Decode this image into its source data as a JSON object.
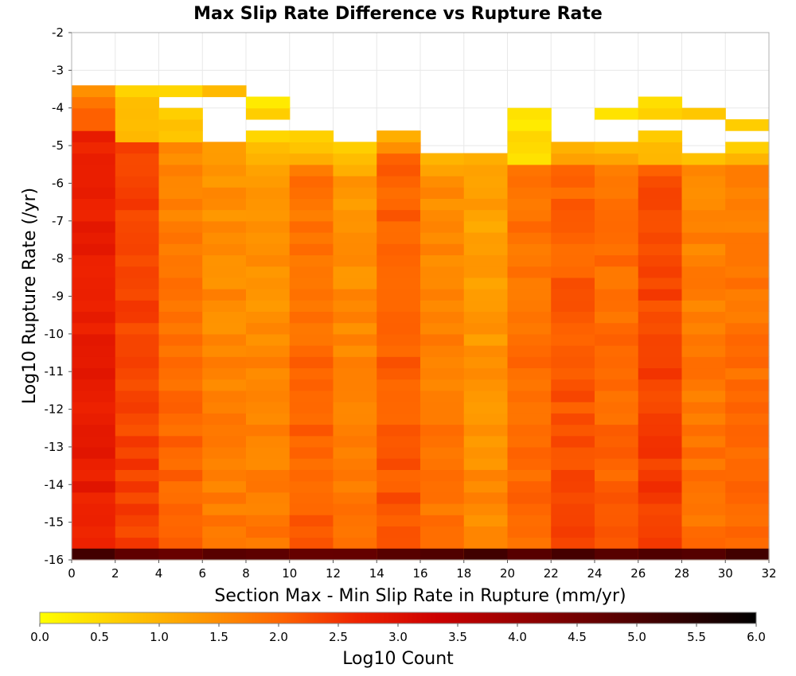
{
  "chart_data": {
    "type": "heatmap",
    "title": "Max Slip Rate Difference vs Rupture Rate",
    "xlabel": "Section Max - Min Slip Rate in Rupture (mm/yr)",
    "ylabel": "Log10 Rupture Rate (/yr)",
    "xlim": [
      0,
      32
    ],
    "ylim": [
      -16,
      -2
    ],
    "x_ticks": [
      "0",
      "2",
      "4",
      "6",
      "8",
      "10",
      "12",
      "14",
      "16",
      "18",
      "20",
      "22",
      "24",
      "26",
      "28",
      "30",
      "32"
    ],
    "y_ticks": [
      "-2",
      "-3",
      "-4",
      "-5",
      "-6",
      "-7",
      "-8",
      "-9",
      "-10",
      "-11",
      "-12",
      "-13",
      "-14",
      "-15",
      "-16"
    ],
    "x_bin_width": 2,
    "y_bin_height": 0.3,
    "y_bin_start": -16,
    "colorbar": {
      "label": "Log10 Count",
      "min": 0.0,
      "max": 6.0,
      "ticks": [
        "0.0",
        "0.5",
        "1.0",
        "1.5",
        "2.0",
        "2.5",
        "3.0",
        "3.5",
        "4.0",
        "4.5",
        "5.0",
        "5.5",
        "6.0"
      ],
      "stops": [
        "#ffff00",
        "#ffcc00",
        "#ff9900",
        "#ff6600",
        "#ee2200",
        "#cc0000",
        "#990000",
        "#660000",
        "#330000",
        "#000000"
      ]
    },
    "columns": [
      {
        "x": 1,
        "y_top": -3.3,
        "profile": [
          [
            -4.7,
            1.4,
            2.3
          ],
          [
            -16,
            2.7,
            2.8
          ]
        ]
      },
      {
        "x": 3,
        "y_top": -3.3,
        "profile": [
          [
            -4.8,
            0.6,
            1.1
          ],
          [
            -16,
            2.3,
            2.4
          ]
        ]
      },
      {
        "x": 5,
        "y_top": -3.3,
        "gap": [
          -4.1,
          -3.8
        ],
        "profile": [
          [
            -4.8,
            0.5,
            0.9
          ],
          [
            -16,
            1.6,
            2.1
          ]
        ]
      },
      {
        "x": 7,
        "y_top": -3.3,
        "gap": [
          -5.0,
          -3.6
        ],
        "profile": [
          [
            -5.4,
            0.8,
            1.2
          ],
          [
            -16,
            1.4,
            1.8
          ]
        ]
      },
      {
        "x": 9,
        "y_top": -3.6,
        "gap": [
          -4.7,
          -4.4
        ],
        "profile": [
          [
            -5.4,
            0.3,
            0.9
          ],
          [
            -16,
            1.3,
            1.8
          ]
        ]
      },
      {
        "x": 11,
        "y_top": -4.7,
        "profile": [
          [
            -5.6,
            0.7,
            1.2
          ],
          [
            -16,
            1.8,
            2.1
          ]
        ]
      },
      {
        "x": 13,
        "y_top": -5.0,
        "profile": [
          [
            -5.7,
            0.6,
            1.0
          ],
          [
            -16,
            1.4,
            1.8
          ]
        ]
      },
      {
        "x": 15,
        "y_top": -4.7,
        "profile": [
          [
            -5.3,
            1.0,
            1.5
          ],
          [
            -16,
            2.0,
            2.2
          ]
        ]
      },
      {
        "x": 17,
        "y_top": -5.3,
        "profile": [
          [
            -5.9,
            0.8,
            1.3
          ],
          [
            -16,
            1.5,
            1.9
          ]
        ]
      },
      {
        "x": 19,
        "y_top": -5.3,
        "profile": [
          [
            -5.9,
            0.9,
            1.3
          ],
          [
            -16,
            1.2,
            1.6
          ]
        ]
      },
      {
        "x": 21,
        "y_top": -4.1,
        "profile": [
          [
            -5.6,
            0.2,
            0.6
          ],
          [
            -16,
            1.8,
            2.0
          ]
        ]
      },
      {
        "x": 23,
        "y_top": -5.0,
        "profile": [
          [
            -5.6,
            1.0,
            1.5
          ],
          [
            -16,
            2.0,
            2.3
          ]
        ]
      },
      {
        "x": 25,
        "y_top": -4.1,
        "gap": [
          -5.0,
          -4.4
        ],
        "profile": [
          [
            -5.6,
            0.5,
            1.2
          ],
          [
            -16,
            1.8,
            2.1
          ]
        ]
      },
      {
        "x": 27,
        "y_top": -3.8,
        "gap": [
          -4.7,
          -4.4
        ],
        "profile": [
          [
            -5.6,
            0.3,
            1.1
          ],
          [
            -16,
            2.2,
            2.5
          ]
        ]
      },
      {
        "x": 29,
        "y_top": -4.1,
        "gap": [
          -5.3,
          -4.4
        ],
        "profile": [
          [
            -5.6,
            0.6,
            1.0
          ],
          [
            -16,
            1.6,
            1.9
          ]
        ]
      },
      {
        "x": 31,
        "y_top": -4.4,
        "gap": [
          -5.0,
          -4.7
        ],
        "profile": [
          [
            -5.6,
            0.5,
            1.0
          ],
          [
            -16,
            1.7,
            2.0
          ]
        ]
      }
    ],
    "bottom_row": {
      "y": -15.85,
      "value": 4.9
    },
    "grid": true,
    "legend": "bottom"
  }
}
